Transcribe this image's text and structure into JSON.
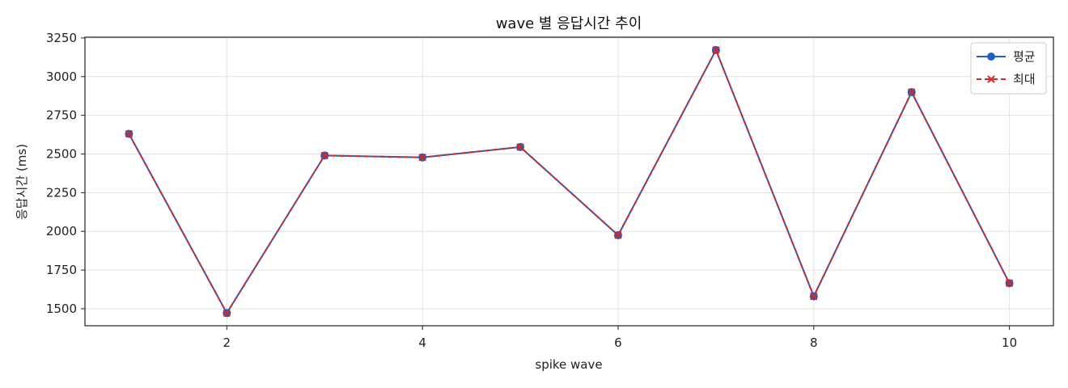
{
  "chart_data": {
    "type": "line",
    "title": "wave 별 응답시간 추이",
    "xlabel": "spike wave",
    "ylabel": "응답시간 (ms)",
    "x": [
      1,
      2,
      3,
      4,
      5,
      6,
      7,
      8,
      9,
      10
    ],
    "xlim": [
      0.55,
      10.45
    ],
    "ylim": [
      1390,
      3255
    ],
    "xticks": [
      2,
      4,
      6,
      8,
      10
    ],
    "yticks": [
      1500,
      1750,
      2000,
      2250,
      2500,
      2750,
      3000,
      3250
    ],
    "grid": true,
    "legend_position": "top-right",
    "series": [
      {
        "name": "평균",
        "values": [
          2630,
          1472,
          2490,
          2478,
          2545,
          1975,
          3172,
          1580,
          2900,
          1665
        ],
        "color": "#1f5fbf",
        "marker": "circle",
        "line_style": "solid"
      },
      {
        "name": "최대",
        "values": [
          2630,
          1472,
          2490,
          2478,
          2545,
          1975,
          3172,
          1580,
          2900,
          1665
        ],
        "color": "#d62728",
        "marker": "x",
        "line_style": "dashed"
      }
    ]
  }
}
